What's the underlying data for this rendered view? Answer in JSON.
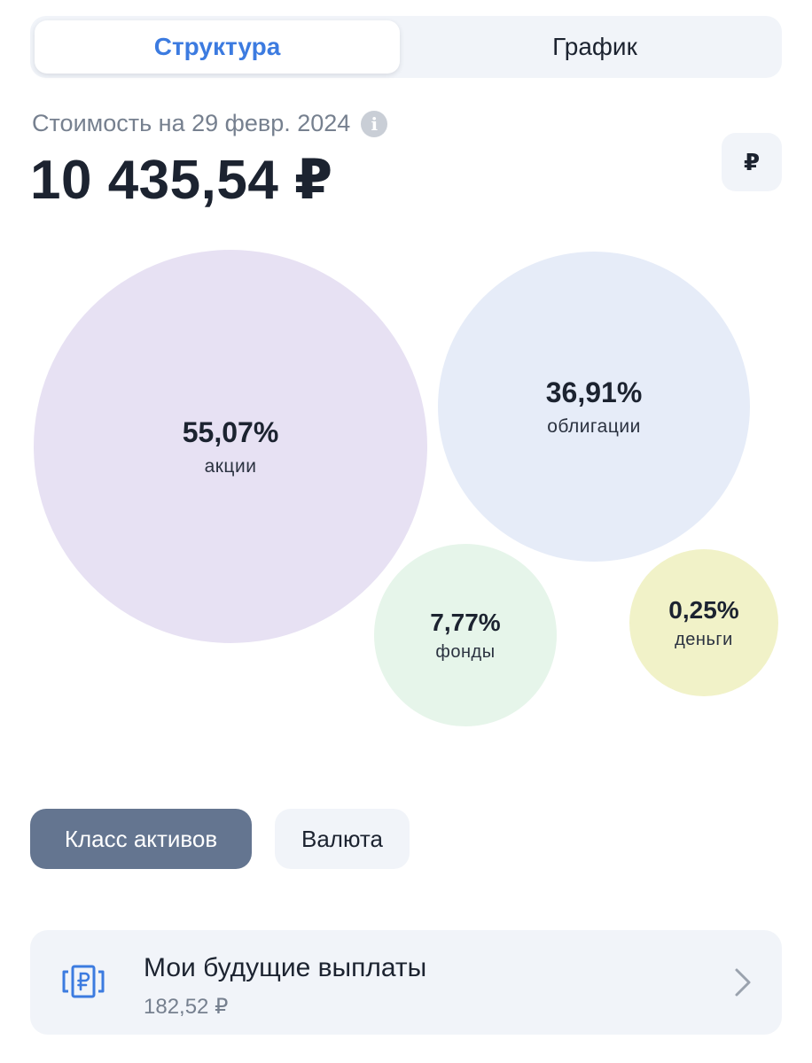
{
  "tabs": {
    "structure": "Структура",
    "chart": "График"
  },
  "portfolio": {
    "value_caption": "Стоимость на 29 февр. 2024",
    "total_value": "10 435,54 ₽",
    "currency_symbol": "₽"
  },
  "allocation": [
    {
      "percent": "55,07%",
      "label": "акции",
      "color": "#e7e1f3"
    },
    {
      "percent": "36,91%",
      "label": "облигации",
      "color": "#e6ecf8"
    },
    {
      "percent": "7,77%",
      "label": "фонды",
      "color": "#e6f5ea"
    },
    {
      "percent": "0,25%",
      "label": "деньги",
      "color": "#f1f2c8"
    }
  ],
  "filters": {
    "asset_class": "Класс активов",
    "currency": "Валюта"
  },
  "future_payments": {
    "title": "Мои будущие выплаты",
    "amount": "182,52 ₽",
    "icon": "ruble-banknote-icon"
  },
  "colors": {
    "accent": "#3c7be0",
    "active_chip": "#647590",
    "panel": "#f1f4f9"
  }
}
